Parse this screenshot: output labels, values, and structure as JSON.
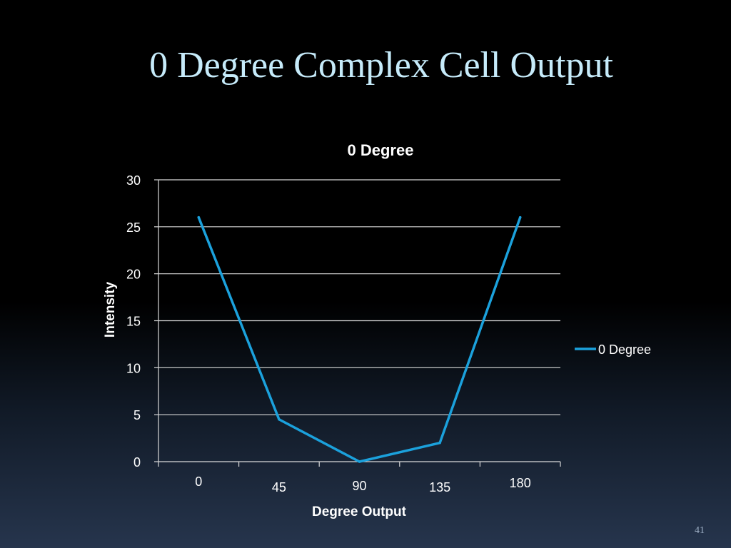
{
  "slide": {
    "title": "0 Degree Complex Cell Output",
    "number": "41"
  },
  "chart_data": {
    "type": "line",
    "title": "0 Degree",
    "xlabel": "Degree Output",
    "ylabel": "Intensity",
    "categories": [
      "0",
      "45",
      "90",
      "135",
      "180"
    ],
    "series": [
      {
        "name": "0 Degree",
        "color": "#1ba1dc",
        "values": [
          26,
          4.5,
          0,
          2,
          26
        ]
      }
    ],
    "ylim": [
      0,
      30
    ],
    "yticks": [
      0,
      5,
      10,
      15,
      20,
      25,
      30
    ],
    "grid": true,
    "legend": "right"
  }
}
